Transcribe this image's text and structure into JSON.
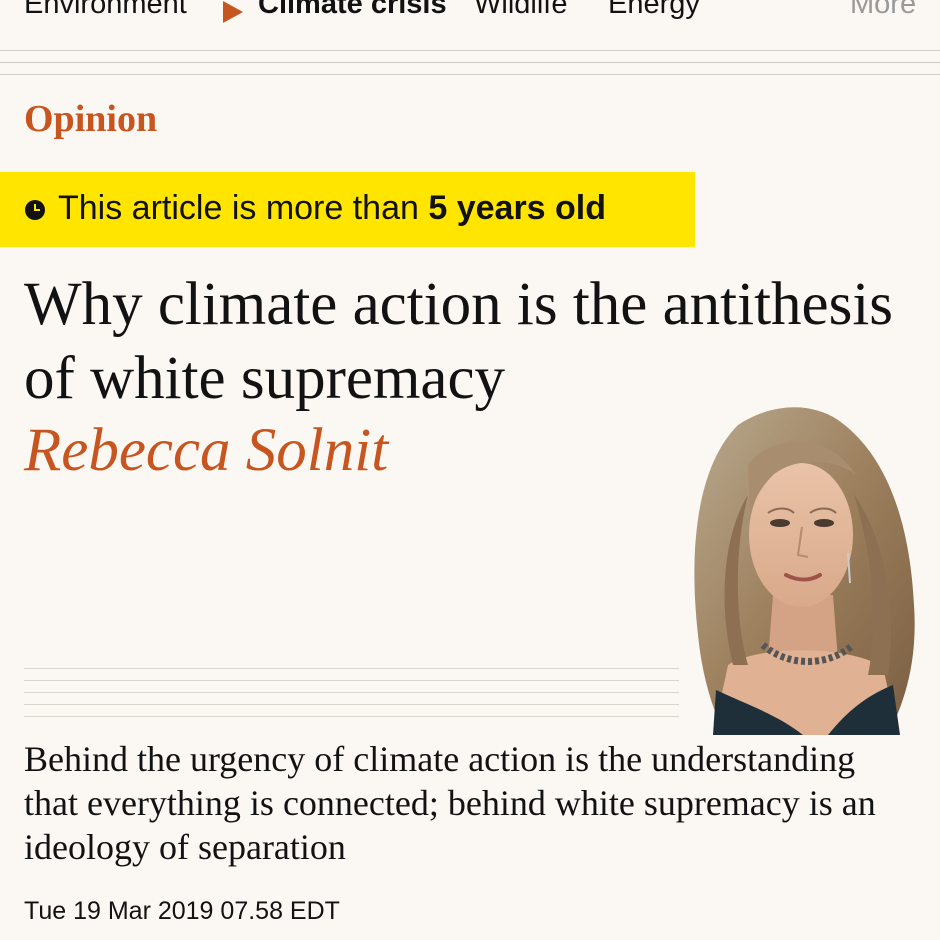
{
  "nav": {
    "items": [
      {
        "label": "Environment",
        "active": false
      },
      {
        "label": "Climate crisis",
        "active": true
      },
      {
        "label": "Wildlife",
        "active": false
      },
      {
        "label": "Energy",
        "active": false
      }
    ],
    "more_label": "More"
  },
  "section": "Opinion",
  "age_banner": {
    "prefix": "This article is more than ",
    "age": "5 years old"
  },
  "headline": "Why climate action is the antithesis of white supremacy",
  "byline": "Rebecca Solnit",
  "standfirst": "Behind the urgency of climate action is the understanding that everything is connected; behind white supremacy is an ideology of separation",
  "dateline": "Tue 19 Mar 2019 07.58 EDT",
  "colors": {
    "accent": "#c7551f",
    "banner": "#ffe500",
    "background": "#fbf8f4",
    "text": "#121212"
  },
  "icons": {
    "nav_arrow": "triangle-right-icon",
    "banner_icon": "clock-icon"
  }
}
